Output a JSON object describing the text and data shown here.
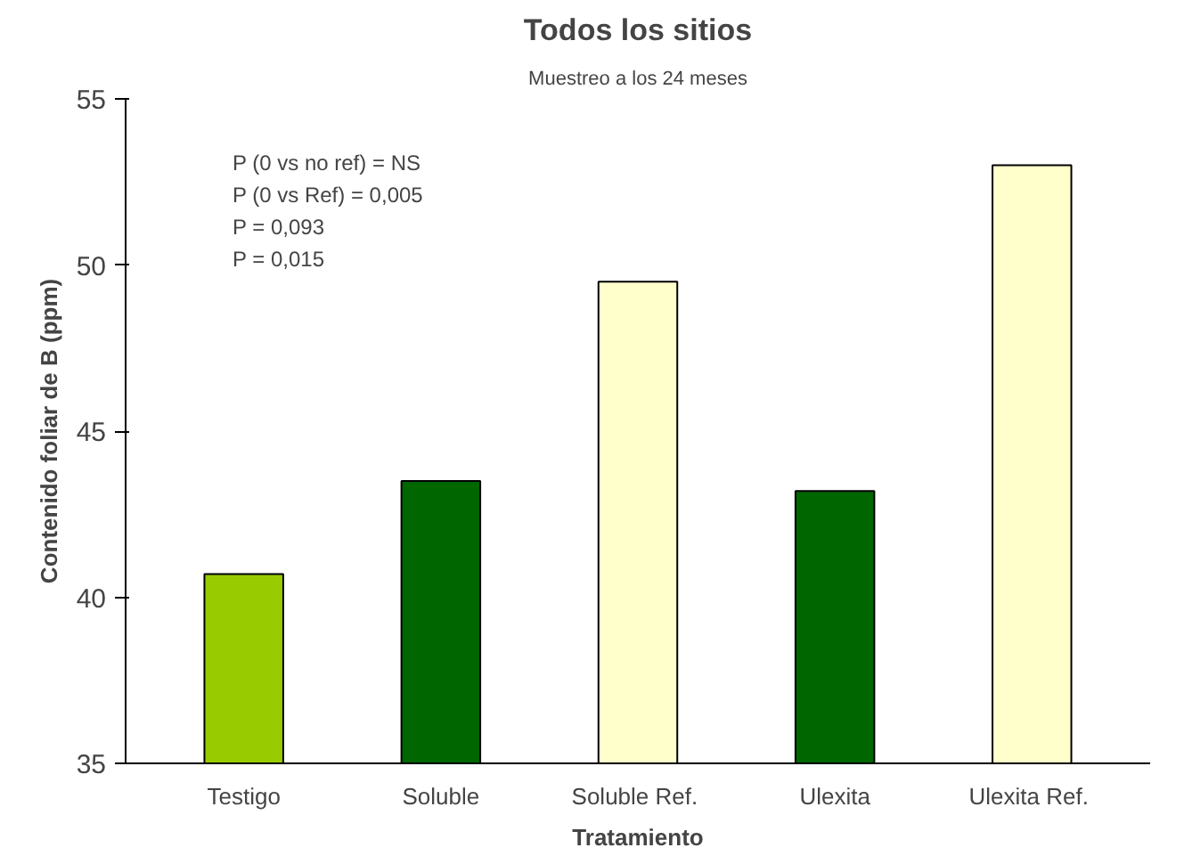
{
  "chart_data": {
    "type": "bar",
    "title": "Todos los sitios",
    "subtitle": "Muestreo a los 24 meses",
    "xlabel": "Tratamiento",
    "ylabel": "Contenido foliar de B (ppm)",
    "categories": [
      "Testigo",
      "Soluble",
      "Soluble  Ref.",
      "Ulexita",
      "Ulexita  Ref."
    ],
    "values": [
      40.7,
      43.5,
      49.5,
      43.2,
      53.0
    ],
    "colors": [
      "#99cc00",
      "#006600",
      "#ffffcc",
      "#006600",
      "#ffffcc"
    ],
    "ylim": [
      35,
      55
    ],
    "yticks": [
      35,
      40,
      45,
      50,
      55
    ],
    "grid": false,
    "annotations": [
      "P (0 vs no ref) = NS",
      "P (0 vs Ref) = 0,005",
      "P = 0,093",
      "P = 0,015"
    ]
  }
}
